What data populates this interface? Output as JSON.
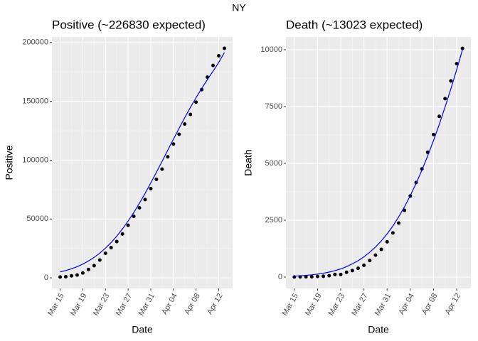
{
  "title": "NY",
  "chart_data": [
    {
      "type": "scatter",
      "title": "Positive (~226830 expected)",
      "xlabel": "Date",
      "ylabel": "Positive",
      "categories": [
        "Mar 15",
        null,
        null,
        null,
        "Mar 19",
        null,
        null,
        null,
        "Mar 23",
        null,
        null,
        null,
        "Mar 27",
        null,
        null,
        null,
        "Mar 31",
        null,
        null,
        null,
        "Apr 04",
        null,
        null,
        null,
        "Apr 08",
        null,
        null,
        null,
        "Apr 12",
        null
      ],
      "series": [
        {
          "color": "#000000",
          "values": [
            729,
            950,
            1700,
            2382,
            4152,
            7102,
            10356,
            15168,
            20875,
            25665,
            30811,
            37258,
            44635,
            52318,
            59513,
            66497,
            75795,
            83712,
            92381,
            102863,
            113704,
            122031,
            130689,
            138863,
            149316,
            159937,
            170512,
            180458,
            188694,
            195031
          ]
        },
        {
          "type": "line",
          "color": "#0000ff",
          "values": [
            5000,
            6200,
            7700,
            9500,
            11700,
            14300,
            17400,
            21000,
            25200,
            30000,
            35400,
            41500,
            48200,
            55500,
            63400,
            71800,
            80600,
            89700,
            99000,
            108400,
            117800,
            127100,
            136100,
            144800,
            153100,
            161000,
            168500,
            175600,
            183000,
            191500
          ]
        }
      ],
      "ylim": [
        -9000,
        204700
      ],
      "yticks": [
        0,
        50000,
        100000,
        150000,
        200000
      ],
      "grid": true
    },
    {
      "type": "scatter",
      "title": "Death (~13023 expected)",
      "xlabel": "Date",
      "ylabel": "Death",
      "categories": [
        "Mar 15",
        null,
        null,
        null,
        "Mar 19",
        null,
        null,
        null,
        "Mar 23",
        null,
        null,
        null,
        "Mar 27",
        null,
        null,
        null,
        "Mar 31",
        null,
        null,
        null,
        "Apr 04",
        null,
        null,
        null,
        "Apr 08",
        null,
        null,
        null,
        "Apr 12",
        null
      ],
      "series": [
        {
          "color": "#000000",
          "values": [
            3,
            7,
            13,
            12,
            27,
            35,
            60,
            114,
            114,
            210,
            285,
            385,
            519,
            728,
            965,
            1218,
            1550,
            1941,
            2373,
            2935,
            3565,
            4159,
            4758,
            5489,
            6268,
            7067,
            7844,
            8627,
            9385,
            10056
          ]
        },
        {
          "type": "line",
          "color": "#0000ff",
          "values": [
            40,
            55,
            75,
            100,
            130,
            170,
            220,
            285,
            360,
            460,
            580,
            720,
            890,
            1090,
            1320,
            1590,
            1900,
            2250,
            2650,
            3090,
            3580,
            4120,
            4700,
            5330,
            6000,
            6720,
            7480,
            8280,
            9120,
            10000
          ]
        }
      ],
      "ylim": [
        -500,
        10560
      ],
      "yticks": [
        0,
        2500,
        5000,
        7500,
        10000
      ],
      "grid": true
    }
  ]
}
